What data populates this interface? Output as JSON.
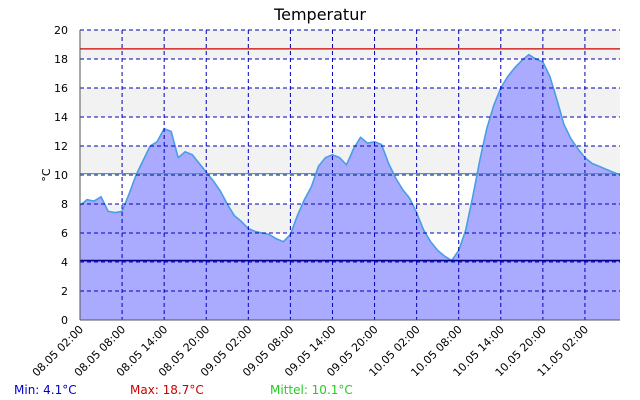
{
  "chart_data": {
    "type": "area",
    "title": "Temperatur",
    "xlabel": "",
    "ylabel": "°C",
    "ylim": [
      0,
      20
    ],
    "ytick_step": 2,
    "xlim": [
      "2015-05-08T02:00",
      "2015-05-11T07:00"
    ],
    "x_ticks": [
      "08.05 02:00",
      "08.05 08:00",
      "08.05 14:00",
      "08.05 20:00",
      "09.05 02:00",
      "09.05 08:00",
      "09.05 14:00",
      "09.05 20:00",
      "10.05 02:00",
      "10.05 08:00",
      "10.05 14:00",
      "10.05 20:00",
      "11.05 02:00"
    ],
    "grid": true,
    "series": [
      {
        "name": "",
        "x": [
          "2015-05-08T02:00",
          "2015-05-08T03:00",
          "2015-05-08T04:00",
          "2015-05-08T05:00",
          "2015-05-08T06:00",
          "2015-05-08T07:00",
          "2015-05-08T08:00",
          "2015-05-08T09:00",
          "2015-05-08T10:00",
          "2015-05-08T11:00",
          "2015-05-08T12:00",
          "2015-05-08T13:00",
          "2015-05-08T14:00",
          "2015-05-08T15:00",
          "2015-05-08T16:00",
          "2015-05-08T17:00",
          "2015-05-08T18:00",
          "2015-05-08T19:00",
          "2015-05-08T20:00",
          "2015-05-08T21:00",
          "2015-05-08T22:00",
          "2015-05-08T23:00",
          "2015-05-09T00:00",
          "2015-05-09T01:00",
          "2015-05-09T02:00",
          "2015-05-09T03:00",
          "2015-05-09T04:00",
          "2015-05-09T05:00",
          "2015-05-09T06:00",
          "2015-05-09T07:00",
          "2015-05-09T08:00",
          "2015-05-09T09:00",
          "2015-05-09T10:00",
          "2015-05-09T11:00",
          "2015-05-09T12:00",
          "2015-05-09T13:00",
          "2015-05-09T14:00",
          "2015-05-09T15:00",
          "2015-05-09T16:00",
          "2015-05-09T17:00",
          "2015-05-09T18:00",
          "2015-05-09T19:00",
          "2015-05-09T20:00",
          "2015-05-09T21:00",
          "2015-05-09T22:00",
          "2015-05-09T23:00",
          "2015-05-10T00:00",
          "2015-05-10T01:00",
          "2015-05-10T02:00",
          "2015-05-10T03:00",
          "2015-05-10T04:00",
          "2015-05-10T05:00",
          "2015-05-10T06:00",
          "2015-05-10T07:00",
          "2015-05-10T08:00",
          "2015-05-10T09:00",
          "2015-05-10T10:00",
          "2015-05-10T11:00",
          "2015-05-10T12:00",
          "2015-05-10T13:00",
          "2015-05-10T14:00",
          "2015-05-10T15:00",
          "2015-05-10T16:00",
          "2015-05-10T17:00",
          "2015-05-10T18:00",
          "2015-05-10T19:00",
          "2015-05-10T20:00",
          "2015-05-10T21:00",
          "2015-05-10T22:00",
          "2015-05-10T23:00",
          "2015-05-11T00:00",
          "2015-05-11T01:00",
          "2015-05-11T02:00",
          "2015-05-11T03:00",
          "2015-05-11T04:00",
          "2015-05-11T05:00",
          "2015-05-11T06:00",
          "2015-05-11T07:00"
        ],
        "values": [
          7.9,
          8.3,
          8.2,
          8.5,
          7.5,
          7.4,
          7.5,
          8.7,
          10.0,
          11.0,
          12.0,
          12.3,
          13.2,
          13.0,
          11.2,
          11.6,
          11.4,
          10.8,
          10.2,
          9.6,
          8.9,
          8.0,
          7.2,
          6.8,
          6.3,
          6.1,
          6.0,
          5.9,
          5.6,
          5.4,
          5.9,
          7.2,
          8.3,
          9.2,
          10.6,
          11.2,
          11.4,
          11.2,
          10.7,
          11.8,
          12.6,
          12.2,
          12.3,
          12.1,
          10.8,
          9.8,
          9.0,
          8.4,
          7.4,
          6.2,
          5.4,
          4.8,
          4.4,
          4.1,
          4.8,
          6.2,
          8.5,
          11.0,
          13.2,
          14.8,
          16.0,
          16.8,
          17.4,
          17.9,
          18.3,
          18.0,
          17.8,
          16.8,
          15.2,
          13.5,
          12.5,
          11.8,
          11.2,
          10.8,
          10.6,
          10.4,
          10.2,
          10.0
        ]
      }
    ],
    "reference_lines": [
      {
        "label": "Max",
        "value": 18.7,
        "color": "#cc0000"
      },
      {
        "label": "Mittel",
        "value": 10.1,
        "color": "#22cc22"
      },
      {
        "label": "Min",
        "value": 4.1,
        "color": "#00008b"
      }
    ]
  },
  "stats": {
    "min": "Min: 4.1°C",
    "max": "Max: 18.7°C",
    "mean": "Mittel: 10.1°C"
  },
  "colors": {
    "area_fill": "#aaaaff",
    "area_line": "#4a9ee6",
    "grid": "#0000bb",
    "band": "#f2f2f2",
    "min_text": "#0000cc",
    "max_text": "#cc0000",
    "mean_text": "#22cc22"
  }
}
